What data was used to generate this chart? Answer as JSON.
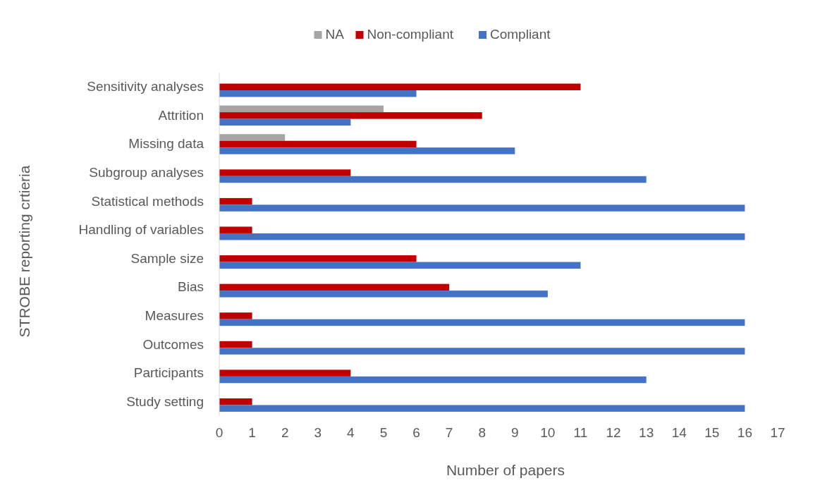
{
  "chart_data": {
    "type": "bar",
    "orientation": "horizontal",
    "xlabel": "Number of papers",
    "ylabel": "STROBE reporting crtieria",
    "categories": [
      "Sensitivity analyses",
      "Attrition",
      "Missing data",
      "Subgroup analyses",
      "Statistical methods",
      "Handling of variables",
      "Sample size",
      "Bias",
      "Measures",
      "Outcomes",
      "Participants",
      "Study setting"
    ],
    "series": [
      {
        "name": "NA",
        "color": "#a5a5a5",
        "values": [
          null,
          5,
          2,
          null,
          null,
          null,
          null,
          null,
          null,
          null,
          null,
          null
        ]
      },
      {
        "name": "Non-compliant",
        "color": "#c00000",
        "values": [
          11,
          8,
          6,
          4,
          1,
          1,
          6,
          7,
          1,
          1,
          4,
          1
        ]
      },
      {
        "name": "Compliant",
        "color": "#4472c4",
        "values": [
          6,
          4,
          9,
          13,
          16,
          16,
          11,
          10,
          16,
          16,
          13,
          16
        ]
      }
    ],
    "xlim": [
      0,
      17
    ],
    "xticks": [
      0,
      1,
      2,
      3,
      4,
      5,
      6,
      7,
      8,
      9,
      10,
      11,
      12,
      13,
      14,
      15,
      16,
      17
    ],
    "grid": false,
    "legend": "top"
  }
}
